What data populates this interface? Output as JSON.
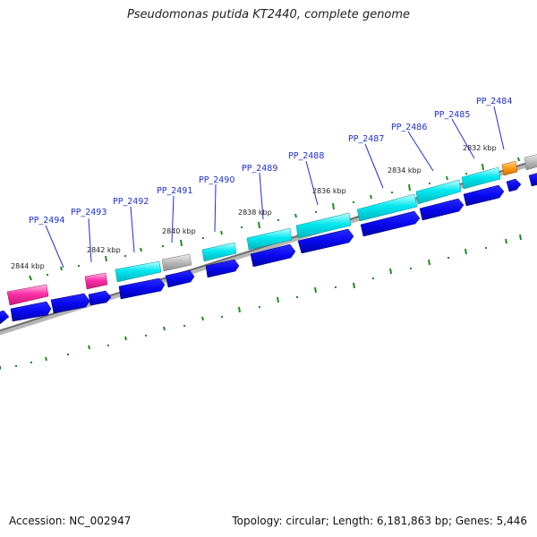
{
  "title": "Pseudomonas putida KT2440, complete genome",
  "accession": "Accession: NC_002947",
  "summary": "Topology: circular; Length: 6,181,863 bp; Genes: 5,446",
  "colors": {
    "background": "#ffffff",
    "cds_forward": "#00e7f0",
    "cds_reverse": "#0808f0",
    "pink": "#ff2fa8",
    "grey": "#b8b8b8",
    "orange": "#ff9a10",
    "backbone": "#888888",
    "ticks": "#1f8a1f",
    "label": "#1f2fd0"
  },
  "tick_labels": [
    "2844 kbp",
    "2842 kbp",
    "2840 kbp",
    "2838 kbp",
    "2836 kbp",
    "2834 kbp",
    "2832 kbp"
  ],
  "gene_labels": [
    "PP_2494",
    "PP_2493",
    "PP_2492",
    "PP_2491",
    "PP_2490",
    "PP_2489",
    "PP_2488",
    "PP_2487",
    "PP_2486",
    "PP_2485",
    "PP_2484"
  ]
}
